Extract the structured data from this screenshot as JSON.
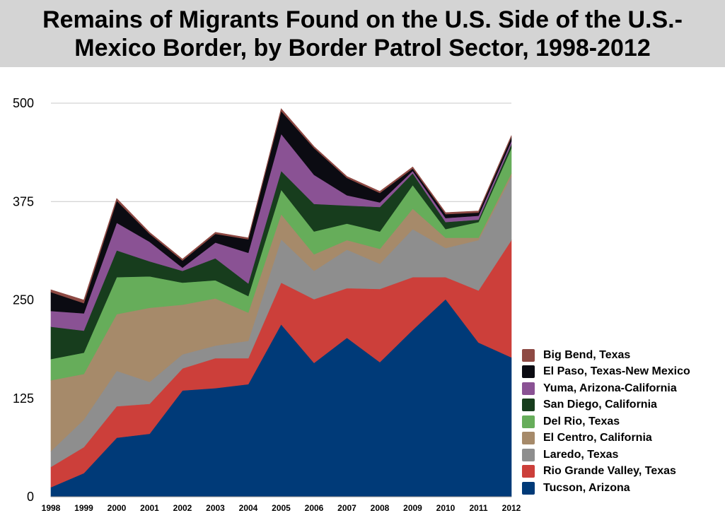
{
  "chart_data": {
    "type": "area",
    "stacked": true,
    "title": "Remains of Migrants Found on the U.S. Side of the U.S.-Mexico Border, by Border Patrol Sector, 1998-2012",
    "xlabel": "",
    "ylabel": "",
    "ylim": [
      0,
      500
    ],
    "yticks": [
      0,
      125,
      250,
      375,
      500
    ],
    "grid": "horizontal",
    "legend_position": "right-bottom",
    "x": [
      "1998",
      "1999",
      "2000",
      "2001",
      "2002",
      "2003",
      "2004",
      "2005",
      "2006",
      "2007",
      "2008",
      "2009",
      "2010",
      "2011",
      "2012"
    ],
    "series": [
      {
        "name": "Tucson, Arizona",
        "color": "#003A78",
        "values": [
          12,
          30,
          75,
          80,
          135,
          138,
          143,
          219,
          170,
          202,
          171,
          212,
          251,
          196,
          177
        ]
      },
      {
        "name": "Rio Grande Valley, Texas",
        "color": "#CC3F3A",
        "values": [
          26,
          33,
          40,
          38,
          28,
          38,
          33,
          53,
          81,
          63,
          93,
          67,
          28,
          66,
          149
        ]
      },
      {
        "name": "Laredo, Texas",
        "color": "#8E8E8E",
        "values": [
          20,
          35,
          45,
          28,
          18,
          16,
          22,
          55,
          36,
          49,
          32,
          61,
          37,
          64,
          81
        ]
      },
      {
        "name": "El Centro, California",
        "color": "#A68A6A",
        "values": [
          90,
          58,
          72,
          94,
          63,
          60,
          36,
          32,
          21,
          12,
          19,
          26,
          13,
          3,
          4
        ]
      },
      {
        "name": "Del Rio, Texas",
        "color": "#66AD5A",
        "values": [
          27,
          27,
          47,
          40,
          28,
          23,
          21,
          31,
          29,
          21,
          22,
          30,
          11,
          20,
          32
        ]
      },
      {
        "name": "San Diego, California",
        "color": "#173D1D",
        "values": [
          41,
          28,
          34,
          19,
          15,
          28,
          16,
          24,
          35,
          23,
          31,
          15,
          9,
          3,
          5
        ]
      },
      {
        "name": "Yuma, Arizona-California",
        "color": "#8A5294",
        "values": [
          20,
          22,
          35,
          25,
          4,
          20,
          39,
          47,
          37,
          13,
          6,
          3,
          5,
          5,
          4
        ]
      },
      {
        "name": "El Paso, Texas-New Mexico",
        "color": "#0B0B12",
        "values": [
          24,
          13,
          28,
          10,
          9,
          11,
          17,
          29,
          34,
          22,
          12,
          3,
          5,
          4,
          5
        ]
      },
      {
        "name": "Big Bend, Texas",
        "color": "#8E4A44",
        "values": [
          3,
          4,
          3,
          2,
          2,
          2,
          2,
          3,
          2,
          2,
          2,
          2,
          2,
          2,
          2
        ]
      }
    ]
  }
}
